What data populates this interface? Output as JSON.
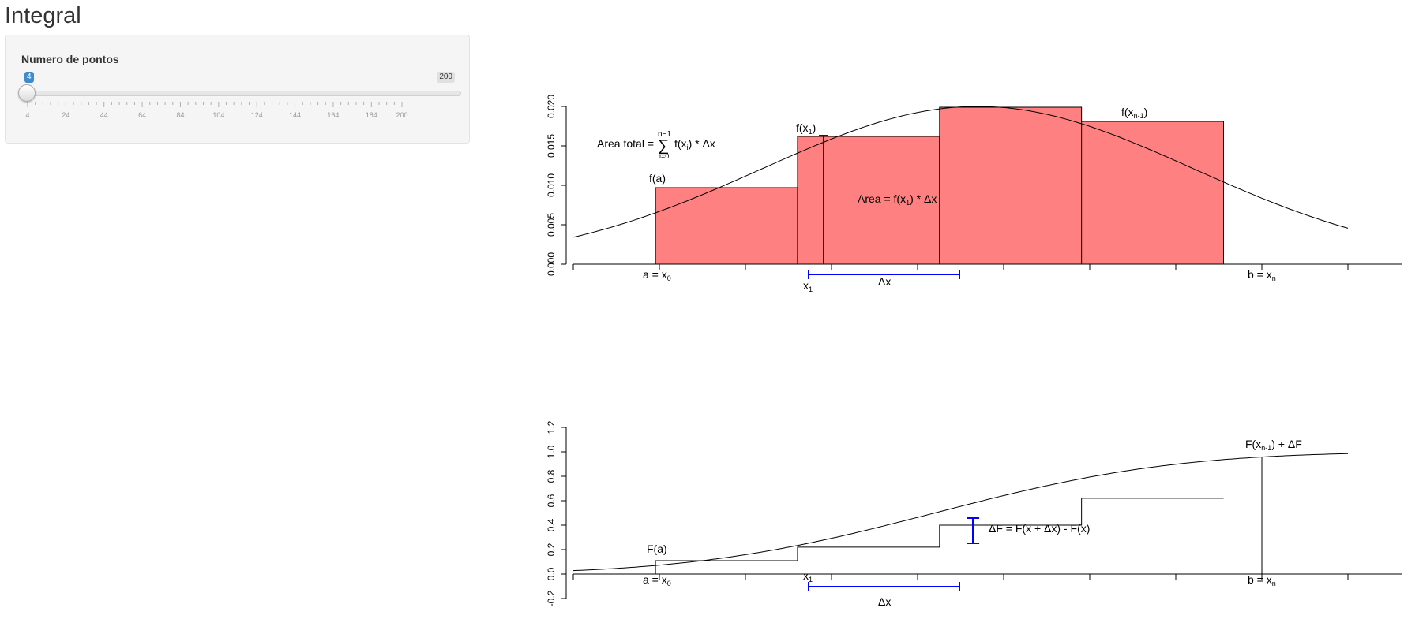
{
  "page": {
    "title": "Integral"
  },
  "slider": {
    "label": "Numero de pontos",
    "value": 4,
    "min": 4,
    "max": 200,
    "min_label": "4",
    "max_label": "200",
    "tick_labels": [
      "4",
      "24",
      "44",
      "64",
      "84",
      "104",
      "124",
      "144",
      "164",
      "184",
      "200"
    ],
    "accent_color": "#428bca"
  },
  "plot_top": {
    "annotations": {
      "area_total_prefix": "Area total = ",
      "sum_top": "n−1",
      "sum_bottom": "i=0",
      "sum_symbol": "∑",
      "sum_body": "f(x",
      "sum_body_sub": "i",
      "sum_body_rest": ") * Δx",
      "f_a": "f(a)",
      "f_x1": "f(x",
      "f_x1_sub": "1",
      "f_xn1": "f(x",
      "f_xn1_sub": "n-1",
      "area_text": "Area = f(x",
      "area_sub": "1",
      "area_rest": ") * Δx",
      "a_label": "a = x",
      "a_sub": "0",
      "x1_label": "x",
      "x1_sub": "1",
      "dx_label": "Δx",
      "b_label": "b = x",
      "b_sub": "n",
      "close_paren": ")"
    },
    "bar_color": "#ff8080",
    "bracket_color": "#0000ff",
    "curve_color": "#000000"
  },
  "plot_bottom": {
    "annotations": {
      "F_a": "F(a)",
      "F_end_prefix": "F(x",
      "F_end_sub": "n-1",
      "F_end_rest": ") + ΔF",
      "dF_text": "ΔF  = F(x + Δx) - F(x)",
      "a_label": "a = x",
      "a_sub": "0",
      "x1_label": "x",
      "x1_sub": "1",
      "dx_label": "Δx",
      "b_label": "b = x",
      "b_sub": "n"
    },
    "bracket_color": "#0000ff",
    "curve_color": "#000000"
  },
  "chart_data": [
    {
      "type": "bar",
      "xlim": [
        -2.0,
        2.5
      ],
      "ylim": [
        0,
        0.02
      ],
      "yticks": [
        "0.000",
        "0.005",
        "0.010",
        "0.015",
        "0.020"
      ],
      "ytick_values": [
        0.0,
        0.005,
        0.01,
        0.015,
        0.02
      ],
      "rectangles": [
        {
          "x0": -1.55,
          "x1": -0.725,
          "height": 0.0097
        },
        {
          "x0": -0.725,
          "x1": 0.1,
          "height": 0.0162
        },
        {
          "x0": 0.1,
          "x1": 0.925,
          "height": 0.0199
        },
        {
          "x0": 0.925,
          "x1": 1.75,
          "height": 0.0181
        }
      ],
      "curve": "normal density",
      "grid": false
    },
    {
      "type": "line",
      "xlim": [
        -2.0,
        2.5
      ],
      "ylim": [
        -0.2,
        1.2
      ],
      "yticks": [
        "-0.2",
        "0.0",
        "0.2",
        "0.4",
        "0.6",
        "0.8",
        "1.0",
        "1.2"
      ],
      "ytick_values": [
        -0.2,
        0.0,
        0.2,
        0.4,
        0.6,
        0.8,
        1.0,
        1.2
      ],
      "steps": [
        {
          "x0": -1.55,
          "x1": -0.725,
          "y": 0.11
        },
        {
          "x0": -0.725,
          "x1": 0.1,
          "y": 0.22
        },
        {
          "x0": 0.1,
          "x1": 0.925,
          "y": 0.4
        },
        {
          "x0": 0.925,
          "x1": 1.75,
          "y": 0.62
        }
      ],
      "curve": "cumulative distribution",
      "grid": false
    }
  ]
}
